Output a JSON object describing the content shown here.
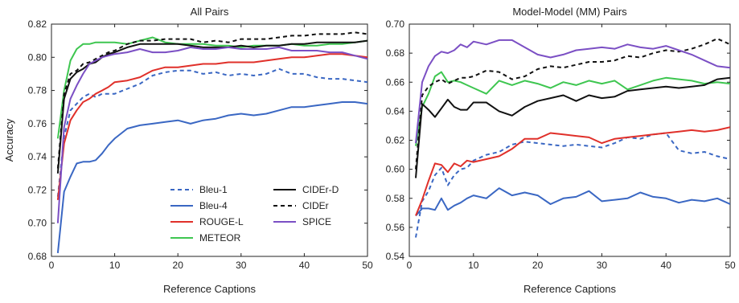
{
  "chart_data": [
    {
      "type": "line",
      "title": "All Pairs",
      "xlabel": "Reference Captions",
      "ylabel": "Accuracy",
      "xlim": [
        0,
        50
      ],
      "ylim": [
        0.68,
        0.82
      ],
      "xticks": [
        0,
        10,
        20,
        30,
        40,
        50
      ],
      "yticks": [
        0.68,
        0.7,
        0.72,
        0.74,
        0.76,
        0.78,
        0.8,
        0.82
      ],
      "grid": false,
      "legend_position": "lower-center, two columns",
      "x": [
        1,
        2,
        3,
        4,
        5,
        6,
        7,
        8,
        9,
        10,
        12,
        14,
        16,
        18,
        20,
        22,
        24,
        26,
        28,
        30,
        32,
        34,
        36,
        38,
        40,
        42,
        44,
        46,
        48,
        50
      ],
      "series": [
        {
          "name": "Bleu-1",
          "color": "#3a67c3",
          "style": "dashed",
          "values": [
            0.716,
            0.752,
            0.768,
            0.772,
            0.776,
            0.778,
            0.776,
            0.778,
            0.778,
            0.778,
            0.781,
            0.784,
            0.789,
            0.791,
            0.792,
            0.792,
            0.79,
            0.791,
            0.789,
            0.79,
            0.789,
            0.79,
            0.793,
            0.79,
            0.79,
            0.788,
            0.787,
            0.787,
            0.786,
            0.785
          ]
        },
        {
          "name": "Bleu-4",
          "color": "#3a67c3",
          "style": "solid",
          "values": [
            0.682,
            0.719,
            0.728,
            0.736,
            0.737,
            0.737,
            0.738,
            0.742,
            0.747,
            0.751,
            0.757,
            0.759,
            0.76,
            0.761,
            0.762,
            0.76,
            0.762,
            0.763,
            0.765,
            0.766,
            0.765,
            0.766,
            0.768,
            0.77,
            0.77,
            0.771,
            0.772,
            0.773,
            0.773,
            0.772
          ]
        },
        {
          "name": "ROUGE-L",
          "color": "#e0302a",
          "style": "solid",
          "values": [
            0.714,
            0.748,
            0.762,
            0.768,
            0.773,
            0.775,
            0.778,
            0.78,
            0.782,
            0.785,
            0.786,
            0.788,
            0.792,
            0.794,
            0.794,
            0.795,
            0.796,
            0.796,
            0.797,
            0.797,
            0.797,
            0.798,
            0.799,
            0.8,
            0.8,
            0.801,
            0.802,
            0.802,
            0.801,
            0.8
          ]
        },
        {
          "name": "METEOR",
          "color": "#3ec650",
          "style": "solid",
          "values": [
            0.751,
            0.78,
            0.798,
            0.805,
            0.808,
            0.808,
            0.809,
            0.809,
            0.809,
            0.809,
            0.808,
            0.81,
            0.812,
            0.809,
            0.808,
            0.808,
            0.808,
            0.807,
            0.807,
            0.806,
            0.807,
            0.807,
            0.807,
            0.808,
            0.807,
            0.807,
            0.808,
            0.808,
            0.809,
            0.81
          ]
        },
        {
          "name": "CIDEr-D",
          "color": "#111111",
          "style": "solid",
          "values": [
            0.73,
            0.775,
            0.787,
            0.791,
            0.793,
            0.796,
            0.797,
            0.8,
            0.802,
            0.803,
            0.806,
            0.808,
            0.808,
            0.808,
            0.808,
            0.807,
            0.806,
            0.806,
            0.806,
            0.807,
            0.806,
            0.807,
            0.807,
            0.808,
            0.808,
            0.809,
            0.809,
            0.809,
            0.809,
            0.81
          ]
        },
        {
          "name": "CIDEr",
          "color": "#111111",
          "style": "dashed",
          "values": [
            0.733,
            0.778,
            0.79,
            0.792,
            0.796,
            0.797,
            0.799,
            0.801,
            0.803,
            0.804,
            0.808,
            0.81,
            0.81,
            0.811,
            0.811,
            0.811,
            0.809,
            0.81,
            0.809,
            0.811,
            0.811,
            0.811,
            0.812,
            0.813,
            0.813,
            0.814,
            0.814,
            0.814,
            0.815,
            0.814
          ]
        },
        {
          "name": "SPICE",
          "color": "#7b4fc4",
          "style": "solid",
          "values": [
            0.7,
            0.758,
            0.775,
            0.783,
            0.79,
            0.796,
            0.798,
            0.8,
            0.801,
            0.802,
            0.803,
            0.805,
            0.803,
            0.803,
            0.804,
            0.806,
            0.805,
            0.805,
            0.806,
            0.805,
            0.805,
            0.805,
            0.806,
            0.804,
            0.804,
            0.804,
            0.803,
            0.803,
            0.801,
            0.799
          ]
        }
      ]
    },
    {
      "type": "line",
      "title": "Model-Model (MM) Pairs",
      "xlabel": "Reference Captions",
      "ylabel": "",
      "xlim": [
        0,
        50
      ],
      "ylim": [
        0.54,
        0.7
      ],
      "xticks": [
        0,
        10,
        20,
        30,
        40,
        50
      ],
      "yticks": [
        0.54,
        0.56,
        0.58,
        0.6,
        0.62,
        0.64,
        0.66,
        0.68,
        0.7
      ],
      "grid": false,
      "x": [
        1,
        2,
        3,
        4,
        5,
        6,
        7,
        8,
        9,
        10,
        12,
        14,
        16,
        18,
        20,
        22,
        24,
        26,
        28,
        30,
        32,
        34,
        36,
        38,
        40,
        42,
        44,
        46,
        48,
        50
      ],
      "series": [
        {
          "name": "Bleu-1",
          "color": "#3a67c3",
          "style": "dashed",
          "values": [
            0.553,
            0.578,
            0.585,
            0.596,
            0.601,
            0.589,
            0.596,
            0.6,
            0.601,
            0.606,
            0.61,
            0.612,
            0.617,
            0.619,
            0.618,
            0.617,
            0.616,
            0.617,
            0.616,
            0.615,
            0.618,
            0.622,
            0.621,
            0.624,
            0.625,
            0.613,
            0.611,
            0.612,
            0.609,
            0.607
          ]
        },
        {
          "name": "Bleu-4",
          "color": "#3a67c3",
          "style": "solid",
          "values": [
            0.568,
            0.573,
            0.573,
            0.572,
            0.58,
            0.572,
            0.575,
            0.577,
            0.58,
            0.582,
            0.58,
            0.587,
            0.582,
            0.584,
            0.582,
            0.576,
            0.58,
            0.581,
            0.585,
            0.578,
            0.579,
            0.58,
            0.584,
            0.581,
            0.58,
            0.577,
            0.579,
            0.578,
            0.58,
            0.576
          ]
        },
        {
          "name": "ROUGE-L",
          "color": "#e0302a",
          "style": "solid",
          "values": [
            0.568,
            0.579,
            0.592,
            0.604,
            0.603,
            0.598,
            0.604,
            0.602,
            0.606,
            0.605,
            0.607,
            0.609,
            0.614,
            0.621,
            0.621,
            0.625,
            0.624,
            0.623,
            0.622,
            0.618,
            0.621,
            0.622,
            0.623,
            0.624,
            0.625,
            0.626,
            0.627,
            0.626,
            0.627,
            0.629
          ]
        },
        {
          "name": "METEOR",
          "color": "#3ec650",
          "style": "solid",
          "values": [
            0.616,
            0.643,
            0.652,
            0.664,
            0.667,
            0.66,
            0.661,
            0.66,
            0.658,
            0.656,
            0.652,
            0.661,
            0.658,
            0.661,
            0.659,
            0.656,
            0.66,
            0.658,
            0.661,
            0.659,
            0.661,
            0.655,
            0.658,
            0.661,
            0.663,
            0.662,
            0.661,
            0.659,
            0.66,
            0.659
          ]
        },
        {
          "name": "CIDEr-D",
          "color": "#111111",
          "style": "solid",
          "values": [
            0.594,
            0.645,
            0.641,
            0.636,
            0.642,
            0.648,
            0.643,
            0.641,
            0.641,
            0.646,
            0.646,
            0.64,
            0.637,
            0.643,
            0.647,
            0.649,
            0.651,
            0.647,
            0.651,
            0.649,
            0.65,
            0.654,
            0.655,
            0.656,
            0.657,
            0.656,
            0.657,
            0.658,
            0.662,
            0.663
          ]
        },
        {
          "name": "CIDEr",
          "color": "#111111",
          "style": "dashed",
          "values": [
            0.6,
            0.651,
            0.657,
            0.66,
            0.662,
            0.659,
            0.661,
            0.663,
            0.663,
            0.664,
            0.668,
            0.667,
            0.662,
            0.664,
            0.669,
            0.671,
            0.67,
            0.672,
            0.674,
            0.674,
            0.675,
            0.678,
            0.677,
            0.68,
            0.682,
            0.681,
            0.683,
            0.686,
            0.69,
            0.686
          ]
        },
        {
          "name": "SPICE",
          "color": "#7b4fc4",
          "style": "solid",
          "values": [
            0.618,
            0.66,
            0.671,
            0.678,
            0.681,
            0.68,
            0.682,
            0.686,
            0.684,
            0.688,
            0.686,
            0.689,
            0.689,
            0.684,
            0.679,
            0.677,
            0.679,
            0.682,
            0.683,
            0.684,
            0.683,
            0.686,
            0.684,
            0.683,
            0.685,
            0.682,
            0.679,
            0.675,
            0.671,
            0.67
          ]
        }
      ]
    }
  ]
}
